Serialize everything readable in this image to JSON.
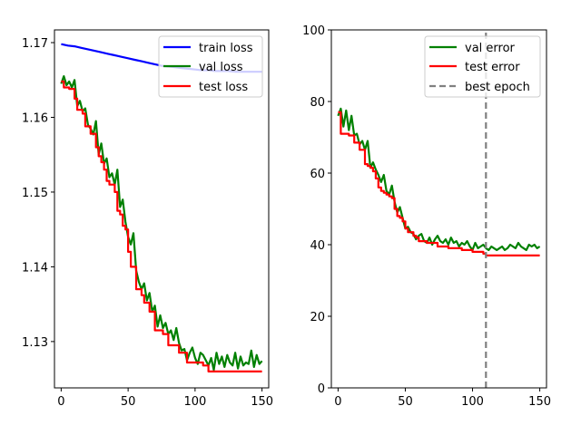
{
  "chart_data": [
    {
      "type": "line",
      "title": "",
      "xlabel": "",
      "ylabel": "",
      "xlim": [
        -5,
        155
      ],
      "ylim": [
        1.1238,
        1.1717
      ],
      "xticks": [
        0,
        50,
        100,
        150
      ],
      "yticks": [
        1.13,
        1.14,
        1.15,
        1.16,
        1.17
      ],
      "xtick_labels": [
        "0",
        "50",
        "100",
        "150"
      ],
      "ytick_labels": [
        "1.13",
        "1.14",
        "1.15",
        "1.16",
        "1.17"
      ],
      "grid": false,
      "legend_position": "top-right",
      "series": [
        {
          "name": "train loss",
          "color": "#0000ff",
          "linestyle": "solid",
          "x": [
            0,
            5,
            10,
            15,
            20,
            25,
            30,
            35,
            40,
            45,
            50,
            55,
            60,
            65,
            70,
            75,
            80,
            85,
            90,
            95,
            100,
            105,
            110,
            115,
            120,
            125,
            130,
            135,
            140,
            145,
            150
          ],
          "y": [
            1.1698,
            1.1696,
            1.1695,
            1.1693,
            1.1691,
            1.1689,
            1.1687,
            1.1685,
            1.1683,
            1.1681,
            1.1679,
            1.1677,
            1.1675,
            1.1673,
            1.1671,
            1.1669,
            1.1668,
            1.1667,
            1.1666,
            1.1665,
            1.1664,
            1.1663,
            1.1663,
            1.1662,
            1.1662,
            1.1662,
            1.1661,
            1.1661,
            1.1661,
            1.1661,
            1.1661
          ]
        },
        {
          "name": "val loss",
          "color": "#008000",
          "linestyle": "solid",
          "x": [
            0,
            2,
            4,
            6,
            8,
            10,
            12,
            14,
            16,
            18,
            20,
            22,
            24,
            26,
            28,
            30,
            32,
            34,
            36,
            38,
            40,
            42,
            44,
            46,
            48,
            50,
            52,
            54,
            56,
            58,
            60,
            62,
            64,
            66,
            68,
            70,
            72,
            74,
            76,
            78,
            80,
            82,
            84,
            86,
            88,
            90,
            92,
            94,
            96,
            98,
            100,
            102,
            104,
            106,
            108,
            110,
            112,
            114,
            116,
            118,
            120,
            122,
            124,
            126,
            128,
            130,
            132,
            134,
            136,
            138,
            140,
            142,
            144,
            146,
            148,
            150
          ],
          "y": [
            1.1645,
            1.1655,
            1.1643,
            1.1648,
            1.164,
            1.165,
            1.1615,
            1.1622,
            1.1608,
            1.1612,
            1.159,
            1.1585,
            1.1577,
            1.1595,
            1.155,
            1.1565,
            1.1538,
            1.1545,
            1.152,
            1.1525,
            1.151,
            1.153,
            1.148,
            1.149,
            1.146,
            1.144,
            1.143,
            1.1445,
            1.1395,
            1.138,
            1.137,
            1.1378,
            1.1355,
            1.1365,
            1.134,
            1.1348,
            1.132,
            1.1335,
            1.1318,
            1.1325,
            1.131,
            1.1315,
            1.1302,
            1.1318,
            1.1298,
            1.1288,
            1.129,
            1.1275,
            1.1285,
            1.1292,
            1.1278,
            1.127,
            1.1285,
            1.1282,
            1.1275,
            1.1268,
            1.1278,
            1.1262,
            1.1285,
            1.127,
            1.128,
            1.1266,
            1.1282,
            1.1272,
            1.1268,
            1.1285,
            1.1264,
            1.128,
            1.1268,
            1.1272,
            1.127,
            1.1288,
            1.1266,
            1.1282,
            1.127,
            1.1274
          ]
        },
        {
          "name": "test loss",
          "color": "#ff0000",
          "linestyle": "solid",
          "x": [
            0,
            2,
            4,
            6,
            8,
            10,
            12,
            14,
            16,
            18,
            20,
            22,
            24,
            26,
            28,
            30,
            32,
            34,
            36,
            38,
            40,
            42,
            44,
            46,
            48,
            50,
            52,
            54,
            56,
            58,
            60,
            62,
            64,
            66,
            68,
            70,
            72,
            74,
            76,
            78,
            80,
            82,
            84,
            86,
            88,
            90,
            92,
            94,
            96,
            98,
            100,
            102,
            104,
            106,
            108,
            110,
            150
          ],
          "y": [
            1.1648,
            1.164,
            1.164,
            1.1638,
            1.1638,
            1.1625,
            1.161,
            1.161,
            1.1605,
            1.1588,
            1.1588,
            1.1578,
            1.1578,
            1.156,
            1.1548,
            1.154,
            1.153,
            1.1515,
            1.151,
            1.151,
            1.15,
            1.1475,
            1.147,
            1.1455,
            1.145,
            1.142,
            1.14,
            1.14,
            1.137,
            1.137,
            1.1362,
            1.1352,
            1.1352,
            1.134,
            1.134,
            1.1315,
            1.1315,
            1.1315,
            1.131,
            1.131,
            1.1295,
            1.1295,
            1.1295,
            1.1295,
            1.1285,
            1.1285,
            1.1285,
            1.1272,
            1.1272,
            1.1272,
            1.1272,
            1.1272,
            1.1272,
            1.1268,
            1.1268,
            1.126,
            1.126
          ]
        }
      ]
    },
    {
      "type": "line",
      "title": "",
      "xlabel": "",
      "ylabel": "",
      "xlim": [
        -5,
        155
      ],
      "ylim": [
        0,
        100
      ],
      "xticks": [
        0,
        50,
        100,
        150
      ],
      "yticks": [
        0,
        20,
        40,
        60,
        80,
        100
      ],
      "xtick_labels": [
        "0",
        "50",
        "100",
        "150"
      ],
      "ytick_labels": [
        "0",
        "20",
        "40",
        "60",
        "80",
        "100"
      ],
      "grid": false,
      "legend_position": "top-right",
      "series": [
        {
          "name": "val error",
          "color": "#008000",
          "linestyle": "solid",
          "x": [
            0,
            2,
            4,
            6,
            8,
            10,
            12,
            14,
            16,
            18,
            20,
            22,
            24,
            26,
            28,
            30,
            32,
            34,
            36,
            38,
            40,
            42,
            44,
            46,
            48,
            50,
            52,
            54,
            56,
            58,
            60,
            62,
            64,
            66,
            68,
            70,
            72,
            74,
            76,
            78,
            80,
            82,
            84,
            86,
            88,
            90,
            92,
            94,
            96,
            98,
            100,
            102,
            104,
            106,
            108,
            110,
            112,
            114,
            116,
            118,
            120,
            122,
            124,
            126,
            128,
            130,
            132,
            134,
            136,
            138,
            140,
            142,
            144,
            146,
            148,
            150
          ],
          "y": [
            76.0,
            78.0,
            73.0,
            77.5,
            72.0,
            76.0,
            70.5,
            71.0,
            68.0,
            69.0,
            66.5,
            69.0,
            61.5,
            63.0,
            61.0,
            59.5,
            57.5,
            59.5,
            55.0,
            54.0,
            56.5,
            52.0,
            49.0,
            50.5,
            47.5,
            44.5,
            45.0,
            43.5,
            43.0,
            41.5,
            42.5,
            43.0,
            41.0,
            40.5,
            42.0,
            40.0,
            41.5,
            42.5,
            41.0,
            40.5,
            41.5,
            40.0,
            42.0,
            40.5,
            41.0,
            39.5,
            40.5,
            40.0,
            41.0,
            39.5,
            38.5,
            40.5,
            39.0,
            39.5,
            40.0,
            39.0,
            38.5,
            39.5,
            39.0,
            38.5,
            39.0,
            39.5,
            38.5,
            39.0,
            40.0,
            39.5,
            39.0,
            40.5,
            39.5,
            39.0,
            38.5,
            40.0,
            39.5,
            40.0,
            39.0,
            39.5
          ]
        },
        {
          "name": "test error",
          "color": "#ff0000",
          "linestyle": "solid",
          "x": [
            0,
            2,
            4,
            6,
            8,
            10,
            12,
            14,
            16,
            18,
            20,
            22,
            24,
            26,
            28,
            30,
            32,
            34,
            36,
            38,
            40,
            42,
            44,
            46,
            48,
            50,
            52,
            54,
            56,
            58,
            60,
            62,
            64,
            66,
            68,
            70,
            72,
            74,
            76,
            78,
            80,
            82,
            84,
            86,
            88,
            90,
            92,
            94,
            96,
            98,
            100,
            102,
            104,
            106,
            108,
            110,
            150
          ],
          "y": [
            77.0,
            71.0,
            71.0,
            71.0,
            70.5,
            70.5,
            68.5,
            68.5,
            66.5,
            66.5,
            62.5,
            62.0,
            61.5,
            60.5,
            58.5,
            56.0,
            55.0,
            54.5,
            54.0,
            53.5,
            53.0,
            50.0,
            48.0,
            47.5,
            46.5,
            44.5,
            43.5,
            43.5,
            42.5,
            42.0,
            41.0,
            41.0,
            41.0,
            40.5,
            40.5,
            40.5,
            40.5,
            39.5,
            39.5,
            39.5,
            39.5,
            39.0,
            39.0,
            39.0,
            39.0,
            39.0,
            38.5,
            38.5,
            38.5,
            38.5,
            38.0,
            38.0,
            38.0,
            38.0,
            37.5,
            37.0,
            37.0
          ]
        },
        {
          "name": "best epoch",
          "color": "#808080",
          "linestyle": "dashed",
          "x": [
            110,
            110
          ],
          "y": [
            0,
            100
          ]
        }
      ]
    }
  ],
  "legends": [
    [
      "train loss",
      "val loss",
      "test loss"
    ],
    [
      "val error",
      "test error",
      "best epoch"
    ]
  ]
}
